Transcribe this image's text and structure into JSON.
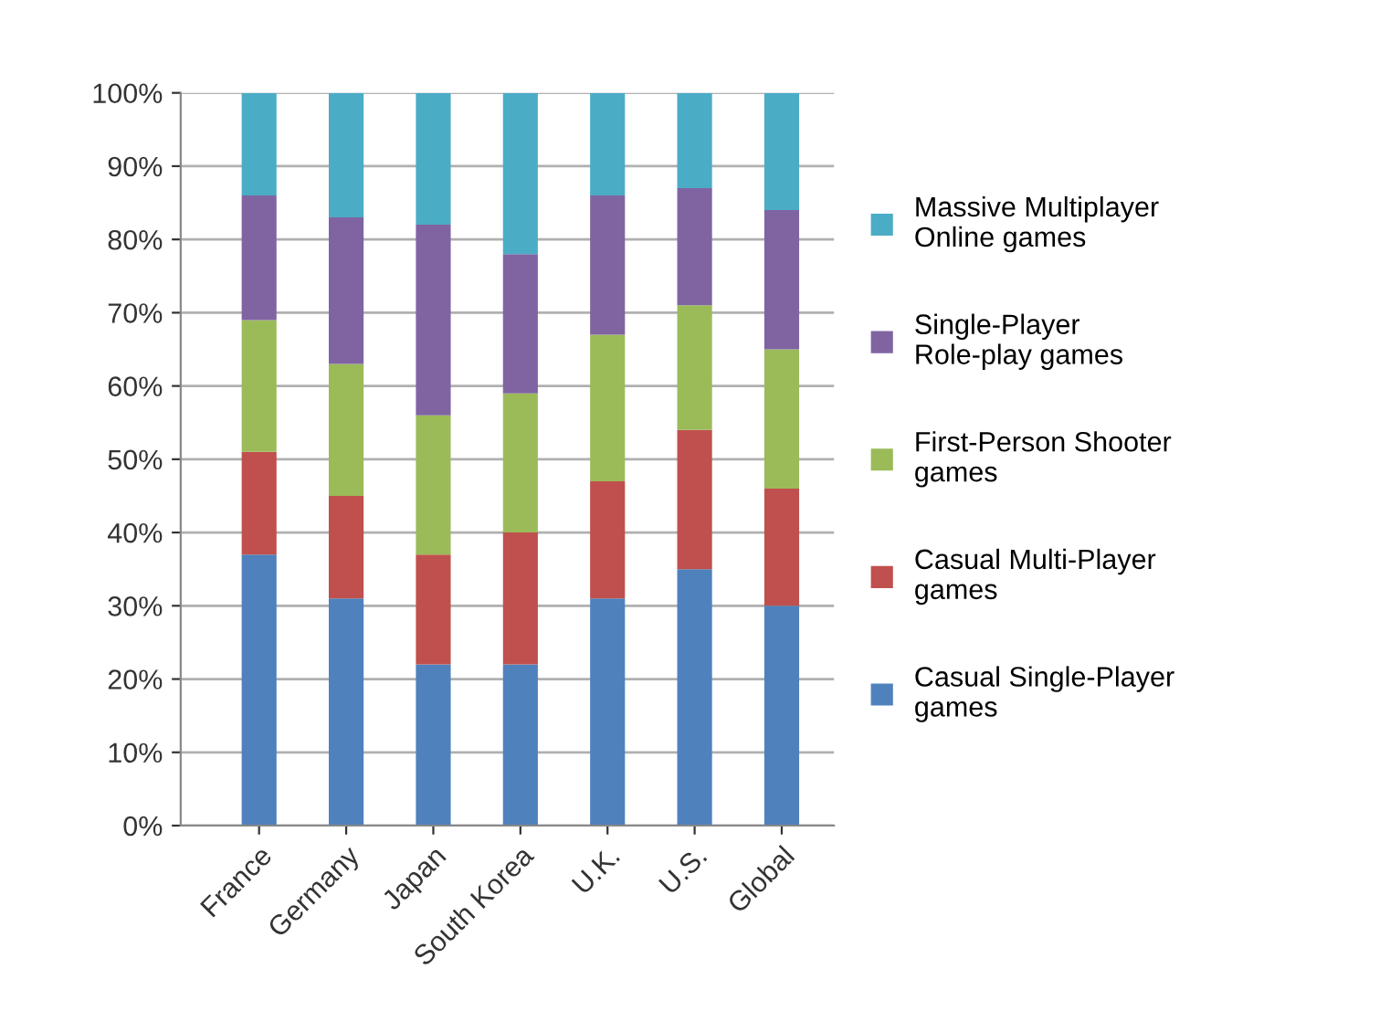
{
  "chart_data": {
    "type": "bar",
    "stacked": true,
    "categories": [
      "France",
      "Germany",
      "Japan",
      "South Korea",
      "U.K.",
      "U.S.",
      "Global"
    ],
    "series": [
      {
        "name": "Casual Single-Player games",
        "color": "#4f81bd",
        "values": [
          37,
          31,
          22,
          22,
          31,
          35,
          30
        ]
      },
      {
        "name": "Casual Multi-Player games",
        "color": "#c0504d",
        "values": [
          14,
          14,
          15,
          18,
          16,
          19,
          16
        ]
      },
      {
        "name": "First-Person Shooter games",
        "color": "#9bbb59",
        "values": [
          18,
          18,
          19,
          19,
          20,
          17,
          19
        ]
      },
      {
        "name": "Single-Player Role-play games",
        "color": "#8064a2",
        "values": [
          17,
          20,
          26,
          19,
          19,
          16,
          19
        ]
      },
      {
        "name": "Massive Multiplayer Online games",
        "color": "#4bacc6",
        "values": [
          14,
          17,
          18,
          22,
          14,
          13,
          16
        ]
      }
    ],
    "ylim": [
      0,
      100
    ],
    "yticks": [
      {
        "value": 0,
        "label": "0%"
      },
      {
        "value": 10,
        "label": "10%"
      },
      {
        "value": 20,
        "label": "20%"
      },
      {
        "value": 30,
        "label": "30%"
      },
      {
        "value": 40,
        "label": "40%"
      },
      {
        "value": 50,
        "label": "50%"
      },
      {
        "value": 60,
        "label": "60%"
      },
      {
        "value": 70,
        "label": "70%"
      },
      {
        "value": 80,
        "label": "80%"
      },
      {
        "value": 90,
        "label": "90%"
      },
      {
        "value": 100,
        "label": "100%"
      }
    ],
    "grid": "y",
    "legend": "right"
  }
}
